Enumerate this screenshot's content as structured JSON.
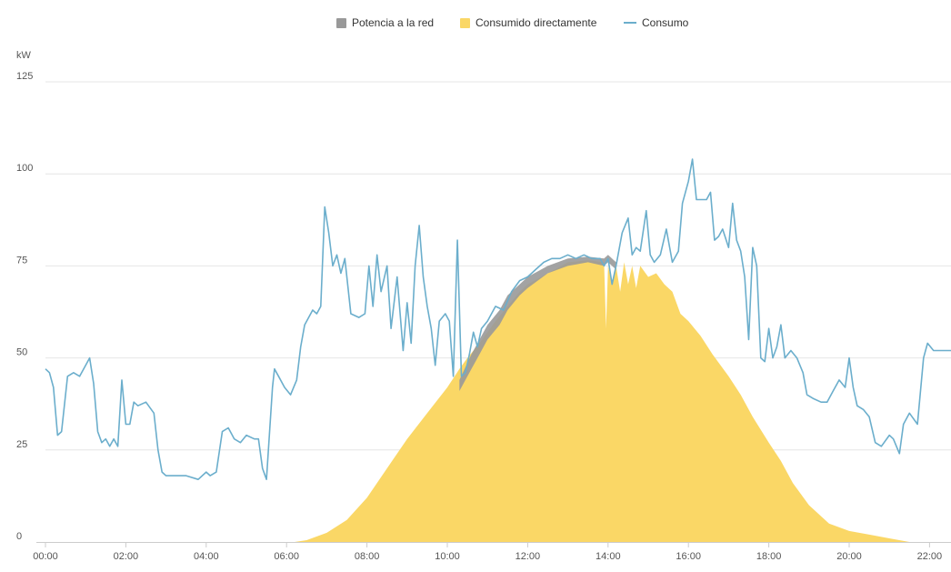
{
  "chart_data": {
    "type": "area",
    "title": "",
    "xlabel": "",
    "ylabel": "kW",
    "ylim": [
      0,
      125
    ],
    "yticks": [
      0,
      25,
      50,
      75,
      100,
      125
    ],
    "xlim": [
      0,
      22.6
    ],
    "xtick_hours": [
      0,
      2,
      4,
      6,
      8,
      10,
      12,
      14,
      16,
      18,
      20,
      22
    ],
    "xtick_labels": [
      "00:00",
      "02:00",
      "04:00",
      "06:00",
      "08:00",
      "10:00",
      "12:00",
      "14:00",
      "16:00",
      "18:00",
      "20:00",
      "22:00"
    ],
    "grid": true,
    "legend_position": "top-center",
    "series": [
      {
        "name": "Potencia a la red",
        "kind": "area",
        "color": "#999999",
        "points": [
          [
            10.3,
            44
          ],
          [
            10.6,
            51
          ],
          [
            10.8,
            55
          ],
          [
            11.0,
            59
          ],
          [
            11.3,
            63
          ],
          [
            11.5,
            67
          ],
          [
            11.8,
            70
          ],
          [
            12.0,
            72
          ],
          [
            12.5,
            75
          ],
          [
            13.0,
            77
          ],
          [
            13.5,
            77.5
          ],
          [
            13.9,
            77
          ],
          [
            14.0,
            78
          ],
          [
            14.2,
            76
          ]
        ],
        "base": [
          [
            10.3,
            41
          ],
          [
            10.6,
            47
          ],
          [
            10.8,
            51
          ],
          [
            11.0,
            55
          ],
          [
            11.3,
            59
          ],
          [
            11.5,
            63
          ],
          [
            11.8,
            67
          ],
          [
            12.0,
            69
          ],
          [
            12.5,
            73
          ],
          [
            13.0,
            75
          ],
          [
            13.5,
            76
          ],
          [
            13.9,
            75
          ],
          [
            14.0,
            76
          ],
          [
            14.2,
            74
          ]
        ]
      },
      {
        "name": "Consumido directamente",
        "kind": "area",
        "color": "#FAD766",
        "points": [
          [
            0,
            0
          ],
          [
            6.2,
            0
          ],
          [
            6.5,
            0.5
          ],
          [
            7.0,
            2.5
          ],
          [
            7.5,
            6
          ],
          [
            8.0,
            12
          ],
          [
            8.5,
            20
          ],
          [
            9.0,
            28
          ],
          [
            9.5,
            35
          ],
          [
            10.0,
            42
          ],
          [
            10.3,
            47
          ],
          [
            10.5,
            50
          ],
          [
            10.8,
            54
          ],
          [
            11.0,
            57
          ],
          [
            11.2,
            60
          ],
          [
            11.5,
            64
          ],
          [
            11.8,
            68
          ],
          [
            12.0,
            70
          ],
          [
            12.5,
            73
          ],
          [
            13.0,
            76
          ],
          [
            13.5,
            76.5
          ],
          [
            13.9,
            76
          ],
          [
            13.95,
            58
          ],
          [
            14.0,
            75
          ],
          [
            14.1,
            70
          ],
          [
            14.2,
            75
          ],
          [
            14.3,
            68
          ],
          [
            14.4,
            76
          ],
          [
            14.5,
            70
          ],
          [
            14.6,
            75
          ],
          [
            14.7,
            69
          ],
          [
            14.8,
            75
          ],
          [
            15.0,
            72
          ],
          [
            15.2,
            73
          ],
          [
            15.4,
            70
          ],
          [
            15.6,
            68
          ],
          [
            15.8,
            62
          ],
          [
            16.0,
            60
          ],
          [
            16.3,
            56
          ],
          [
            16.6,
            51
          ],
          [
            17.0,
            45
          ],
          [
            17.3,
            40
          ],
          [
            17.6,
            34
          ],
          [
            18.0,
            27
          ],
          [
            18.3,
            22
          ],
          [
            18.6,
            16
          ],
          [
            19.0,
            10
          ],
          [
            19.5,
            5
          ],
          [
            20.0,
            3
          ],
          [
            20.5,
            2
          ],
          [
            21.0,
            1
          ],
          [
            21.5,
            0
          ],
          [
            22.6,
            0
          ]
        ]
      },
      {
        "name": "Consumo",
        "kind": "line",
        "color": "#6BAECC",
        "points": [
          [
            0,
            47
          ],
          [
            0.1,
            46
          ],
          [
            0.2,
            42
          ],
          [
            0.3,
            29
          ],
          [
            0.4,
            30
          ],
          [
            0.55,
            45
          ],
          [
            0.7,
            46
          ],
          [
            0.85,
            45
          ],
          [
            0.95,
            47
          ],
          [
            1.1,
            50
          ],
          [
            1.2,
            43
          ],
          [
            1.3,
            30
          ],
          [
            1.4,
            27
          ],
          [
            1.5,
            28
          ],
          [
            1.6,
            26
          ],
          [
            1.7,
            28
          ],
          [
            1.8,
            26
          ],
          [
            1.9,
            44
          ],
          [
            2.0,
            32
          ],
          [
            2.1,
            32
          ],
          [
            2.2,
            38
          ],
          [
            2.3,
            37
          ],
          [
            2.5,
            38
          ],
          [
            2.7,
            35
          ],
          [
            2.8,
            25
          ],
          [
            2.9,
            19
          ],
          [
            3.0,
            18
          ],
          [
            3.2,
            18
          ],
          [
            3.5,
            18
          ],
          [
            3.8,
            17
          ],
          [
            4.0,
            19
          ],
          [
            4.1,
            18
          ],
          [
            4.25,
            19
          ],
          [
            4.4,
            30
          ],
          [
            4.55,
            31
          ],
          [
            4.7,
            28
          ],
          [
            4.85,
            27
          ],
          [
            5.0,
            29
          ],
          [
            5.2,
            28
          ],
          [
            5.3,
            28
          ],
          [
            5.4,
            20
          ],
          [
            5.5,
            17
          ],
          [
            5.65,
            42
          ],
          [
            5.7,
            47
          ],
          [
            5.8,
            45
          ],
          [
            5.95,
            42
          ],
          [
            6.1,
            40
          ],
          [
            6.25,
            44
          ],
          [
            6.35,
            53
          ],
          [
            6.45,
            59
          ],
          [
            6.55,
            61
          ],
          [
            6.65,
            63
          ],
          [
            6.75,
            62
          ],
          [
            6.85,
            64
          ],
          [
            6.95,
            91
          ],
          [
            7.05,
            84
          ],
          [
            7.15,
            75
          ],
          [
            7.25,
            78
          ],
          [
            7.35,
            73
          ],
          [
            7.45,
            77
          ],
          [
            7.6,
            62
          ],
          [
            7.8,
            61
          ],
          [
            7.95,
            62
          ],
          [
            8.05,
            75
          ],
          [
            8.15,
            64
          ],
          [
            8.25,
            78
          ],
          [
            8.35,
            68
          ],
          [
            8.5,
            75
          ],
          [
            8.6,
            58
          ],
          [
            8.75,
            72
          ],
          [
            8.9,
            52
          ],
          [
            9.0,
            65
          ],
          [
            9.1,
            54
          ],
          [
            9.2,
            75
          ],
          [
            9.3,
            86
          ],
          [
            9.4,
            72
          ],
          [
            9.5,
            64
          ],
          [
            9.6,
            58
          ],
          [
            9.7,
            48
          ],
          [
            9.8,
            60
          ],
          [
            9.95,
            62
          ],
          [
            10.05,
            60
          ],
          [
            10.15,
            45
          ],
          [
            10.25,
            82
          ],
          [
            10.35,
            45
          ],
          [
            10.45,
            46
          ],
          [
            10.55,
            51
          ],
          [
            10.65,
            57
          ],
          [
            10.75,
            53
          ],
          [
            10.85,
            58
          ],
          [
            11.0,
            60
          ],
          [
            11.2,
            64
          ],
          [
            11.4,
            63
          ],
          [
            11.6,
            68
          ],
          [
            11.8,
            71
          ],
          [
            12.0,
            72
          ],
          [
            12.2,
            74
          ],
          [
            12.4,
            76
          ],
          [
            12.6,
            77
          ],
          [
            12.8,
            77
          ],
          [
            13.0,
            78
          ],
          [
            13.2,
            77
          ],
          [
            13.4,
            78
          ],
          [
            13.6,
            77
          ],
          [
            13.8,
            77
          ],
          [
            13.9,
            75
          ],
          [
            14.0,
            77
          ],
          [
            14.1,
            70
          ],
          [
            14.2,
            75
          ],
          [
            14.35,
            84
          ],
          [
            14.5,
            88
          ],
          [
            14.6,
            78
          ],
          [
            14.7,
            80
          ],
          [
            14.8,
            79
          ],
          [
            14.95,
            90
          ],
          [
            15.05,
            78
          ],
          [
            15.15,
            76
          ],
          [
            15.3,
            78
          ],
          [
            15.45,
            85
          ],
          [
            15.6,
            76
          ],
          [
            15.75,
            79
          ],
          [
            15.85,
            92
          ],
          [
            16.0,
            98
          ],
          [
            16.1,
            104
          ],
          [
            16.2,
            93
          ],
          [
            16.3,
            93
          ],
          [
            16.45,
            93
          ],
          [
            16.55,
            95
          ],
          [
            16.65,
            82
          ],
          [
            16.75,
            83
          ],
          [
            16.85,
            85
          ],
          [
            17.0,
            80
          ],
          [
            17.1,
            92
          ],
          [
            17.2,
            82
          ],
          [
            17.3,
            79
          ],
          [
            17.4,
            72
          ],
          [
            17.5,
            55
          ],
          [
            17.6,
            80
          ],
          [
            17.7,
            75
          ],
          [
            17.8,
            50
          ],
          [
            17.9,
            49
          ],
          [
            18.0,
            58
          ],
          [
            18.1,
            50
          ],
          [
            18.2,
            53
          ],
          [
            18.3,
            59
          ],
          [
            18.4,
            50
          ],
          [
            18.55,
            52
          ],
          [
            18.7,
            50
          ],
          [
            18.85,
            46
          ],
          [
            18.95,
            40
          ],
          [
            19.1,
            39
          ],
          [
            19.3,
            38
          ],
          [
            19.45,
            38
          ],
          [
            19.6,
            41
          ],
          [
            19.75,
            44
          ],
          [
            19.9,
            42
          ],
          [
            20.0,
            50
          ],
          [
            20.1,
            42
          ],
          [
            20.2,
            37
          ],
          [
            20.35,
            36
          ],
          [
            20.5,
            34
          ],
          [
            20.65,
            27
          ],
          [
            20.8,
            26
          ],
          [
            21.0,
            29
          ],
          [
            21.1,
            28
          ],
          [
            21.25,
            24
          ],
          [
            21.35,
            32
          ],
          [
            21.5,
            35
          ],
          [
            21.7,
            32
          ],
          [
            21.85,
            50
          ],
          [
            21.95,
            54
          ],
          [
            22.1,
            52
          ],
          [
            22.3,
            52
          ],
          [
            22.6,
            52
          ]
        ]
      }
    ]
  }
}
